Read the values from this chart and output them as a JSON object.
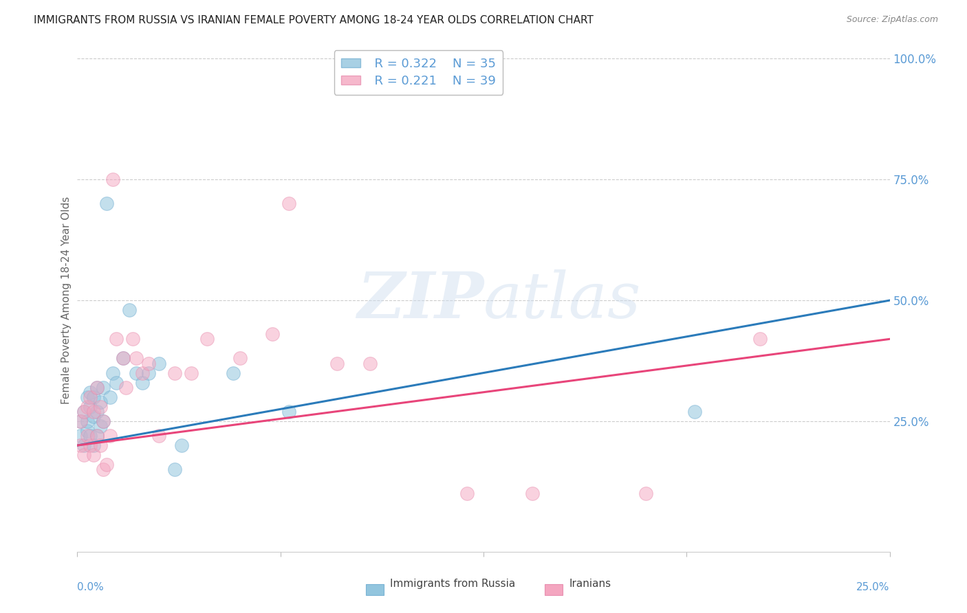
{
  "title": "IMMIGRANTS FROM RUSSIA VS IRANIAN FEMALE POVERTY AMONG 18-24 YEAR OLDS CORRELATION CHART",
  "source": "Source: ZipAtlas.com",
  "ylabel": "Female Poverty Among 18-24 Year Olds",
  "xlim": [
    0.0,
    0.25
  ],
  "ylim": [
    -0.02,
    1.02
  ],
  "legend_label1": "Immigrants from Russia",
  "legend_label2": "Iranians",
  "R1": "0.322",
  "N1": "35",
  "R2": "0.221",
  "N2": "39",
  "color_blue": "#92c5de",
  "color_pink": "#f4a6c0",
  "color_line_blue": "#2b7bba",
  "color_line_pink": "#e8457a",
  "color_axis_label": "#5b9bd5",
  "color_title": "#222222",
  "color_source": "#888888",
  "russia_x": [
    0.001,
    0.001,
    0.002,
    0.002,
    0.003,
    0.003,
    0.003,
    0.004,
    0.004,
    0.004,
    0.005,
    0.005,
    0.005,
    0.006,
    0.006,
    0.006,
    0.007,
    0.007,
    0.008,
    0.008,
    0.009,
    0.01,
    0.011,
    0.012,
    0.014,
    0.016,
    0.018,
    0.02,
    0.022,
    0.025,
    0.03,
    0.032,
    0.048,
    0.065,
    0.19
  ],
  "russia_y": [
    0.22,
    0.25,
    0.2,
    0.27,
    0.23,
    0.25,
    0.3,
    0.22,
    0.28,
    0.31,
    0.2,
    0.26,
    0.3,
    0.22,
    0.27,
    0.32,
    0.24,
    0.29,
    0.25,
    0.32,
    0.7,
    0.3,
    0.35,
    0.33,
    0.38,
    0.48,
    0.35,
    0.33,
    0.35,
    0.37,
    0.15,
    0.2,
    0.35,
    0.27,
    0.27
  ],
  "iran_x": [
    0.001,
    0.001,
    0.002,
    0.002,
    0.003,
    0.003,
    0.004,
    0.004,
    0.005,
    0.005,
    0.006,
    0.006,
    0.007,
    0.007,
    0.008,
    0.008,
    0.009,
    0.01,
    0.011,
    0.012,
    0.014,
    0.015,
    0.017,
    0.018,
    0.02,
    0.022,
    0.025,
    0.03,
    0.035,
    0.04,
    0.05,
    0.06,
    0.065,
    0.08,
    0.09,
    0.12,
    0.14,
    0.175,
    0.21
  ],
  "iran_y": [
    0.2,
    0.25,
    0.18,
    0.27,
    0.22,
    0.28,
    0.2,
    0.3,
    0.18,
    0.27,
    0.22,
    0.32,
    0.2,
    0.28,
    0.15,
    0.25,
    0.16,
    0.22,
    0.75,
    0.42,
    0.38,
    0.32,
    0.42,
    0.38,
    0.35,
    0.37,
    0.22,
    0.35,
    0.35,
    0.42,
    0.38,
    0.43,
    0.7,
    0.37,
    0.37,
    0.1,
    0.1,
    0.1,
    0.42
  ],
  "ytick_positions": [
    0.0,
    0.25,
    0.5,
    0.75,
    1.0
  ],
  "ytick_labels_right": [
    "",
    "25.0%",
    "50.0%",
    "75.0%",
    "100.0%"
  ],
  "xtick_positions": [
    0.0,
    0.0625,
    0.125,
    0.1875,
    0.25
  ]
}
